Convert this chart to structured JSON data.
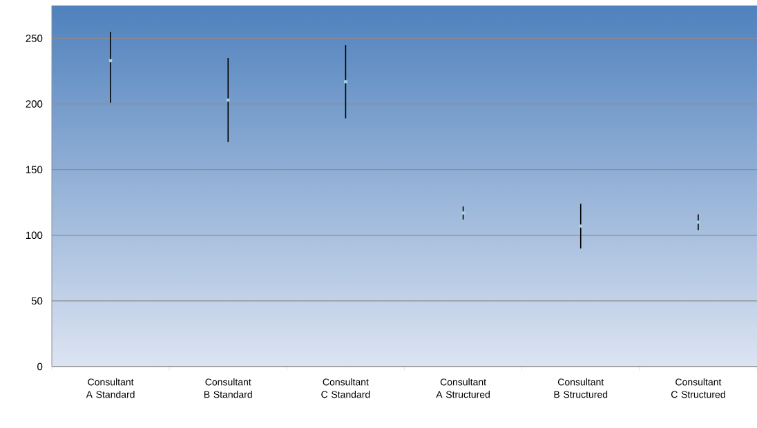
{
  "chart_data": {
    "type": "scatter",
    "categories": [
      "Consultant A Standard",
      "Consultant B Standard",
      "Consultant C Standard",
      "Consultant A Structured",
      "Consultant B Structured",
      "Consultant C Structured"
    ],
    "values": [
      233,
      203,
      217,
      117,
      107,
      110
    ],
    "errors": [
      [
        201,
        255
      ],
      [
        171,
        235
      ],
      [
        189,
        245
      ],
      [
        112,
        122
      ],
      [
        90,
        124
      ],
      [
        104,
        116
      ]
    ],
    "color": "#a6d8e0",
    "marker": "square",
    "ylim": [
      0,
      275
    ],
    "yticks": [
      0,
      50,
      100,
      150,
      200,
      250
    ],
    "grid": "y"
  }
}
